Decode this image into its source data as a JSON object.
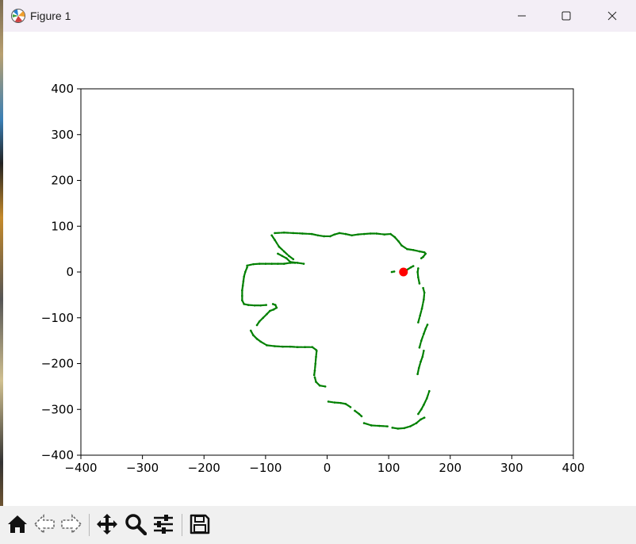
{
  "window": {
    "title": "Figure 1",
    "controls": [
      "minimize-icon",
      "maximize-icon",
      "close-icon"
    ]
  },
  "toolbar": {
    "buttons": [
      "home-icon",
      "back-icon",
      "forward-icon",
      "pan-icon",
      "zoom-icon",
      "configure-subplots-icon",
      "save-icon"
    ]
  },
  "colors": {
    "trajectory": "#008000",
    "current_position": "#ff0000",
    "axes": "#000000"
  },
  "chart_data": {
    "type": "scatter",
    "xlim": [
      -400,
      400
    ],
    "ylim": [
      -400,
      400
    ],
    "xticks": [
      -400,
      -300,
      -200,
      -100,
      0,
      100,
      200,
      300,
      400
    ],
    "yticks": [
      -400,
      -300,
      -200,
      -100,
      0,
      100,
      200,
      300,
      400
    ],
    "xtick_labels": [
      "−400",
      "−300",
      "−200",
      "−100",
      "0",
      "100",
      "200",
      "300",
      "400"
    ],
    "ytick_labels": [
      "−400",
      "−300",
      "−200",
      "−100",
      "0",
      "100",
      "200",
      "300",
      "400"
    ],
    "grid": false,
    "title": "",
    "xlabel": "",
    "ylabel": "",
    "series": [
      {
        "color": "#008000",
        "marker_size": "small",
        "segments": [
          [
            [
              -85,
              85
            ],
            [
              -70,
              86
            ],
            [
              -55,
              85
            ],
            [
              -40,
              84
            ],
            [
              -25,
              83
            ],
            [
              -15,
              80
            ],
            [
              -5,
              78
            ],
            [
              5,
              78
            ],
            [
              12,
              82
            ],
            [
              20,
              85
            ],
            [
              30,
              83
            ],
            [
              40,
              80
            ],
            [
              50,
              82
            ],
            [
              60,
              83
            ],
            [
              70,
              84
            ],
            [
              80,
              84
            ],
            [
              93,
              82
            ],
            [
              103,
              83
            ],
            [
              110,
              76
            ],
            [
              116,
              67
            ],
            [
              121,
              58
            ],
            [
              130,
              50
            ],
            [
              140,
              48
            ],
            [
              150,
              45
            ],
            [
              158,
              43
            ],
            [
              160,
              40
            ],
            [
              156,
              33
            ],
            [
              153,
              30
            ]
          ],
          [
            [
              -90,
              80
            ],
            [
              -85,
              70
            ],
            [
              -78,
              55
            ],
            [
              -70,
              45
            ],
            [
              -62,
              35
            ],
            [
              -55,
              28
            ]
          ],
          [
            [
              -80,
              40
            ],
            [
              -73,
              35
            ],
            [
              -66,
              30
            ],
            [
              -60,
              22
            ],
            [
              -48,
              20
            ],
            [
              -38,
              18
            ]
          ],
          [
            [
              -130,
              14
            ],
            [
              -120,
              17
            ],
            [
              -110,
              18
            ],
            [
              -100,
              18
            ],
            [
              -90,
              18
            ],
            [
              -80,
              18
            ],
            [
              -70,
              18
            ],
            [
              -60,
              20
            ],
            [
              -52,
              20
            ]
          ],
          [
            [
              -130,
              10
            ],
            [
              -133,
              0
            ],
            [
              -135,
              -10
            ],
            [
              -136,
              -20
            ],
            [
              -137,
              -30
            ],
            [
              -138,
              -40
            ],
            [
              -138,
              -52
            ],
            [
              -138,
              -62
            ],
            [
              -135,
              -70
            ],
            [
              -128,
              -72
            ],
            [
              -118,
              -73
            ],
            [
              -108,
              -73
            ],
            [
              -99,
              -72
            ]
          ],
          [
            [
              -88,
              -70
            ],
            [
              -84,
              -72
            ],
            [
              -82,
              -78
            ],
            [
              -87,
              -82
            ],
            [
              -93,
              -85
            ],
            [
              -98,
              -92
            ],
            [
              -104,
              -100
            ],
            [
              -110,
              -108
            ],
            [
              -114,
              -116
            ]
          ],
          [
            [
              -124,
              -128
            ],
            [
              -120,
              -138
            ],
            [
              -114,
              -146
            ],
            [
              -108,
              -152
            ],
            [
              -98,
              -160
            ],
            [
              -85,
              -162
            ],
            [
              -72,
              -163
            ],
            [
              -60,
              -163
            ],
            [
              -48,
              -164
            ],
            [
              -36,
              -164
            ],
            [
              -24,
              -164
            ],
            [
              -18,
              -170
            ]
          ],
          [
            [
              -17,
              -172
            ],
            [
              -18,
              -185
            ],
            [
              -19,
              -200
            ],
            [
              -20,
              -215
            ],
            [
              -21,
              -225
            ]
          ],
          [
            [
              -20,
              -230
            ],
            [
              -18,
              -240
            ],
            [
              -12,
              -248
            ],
            [
              -3,
              -250
            ]
          ],
          [
            [
              2,
              -283
            ],
            [
              12,
              -285
            ],
            [
              22,
              -286
            ],
            [
              30,
              -288
            ],
            [
              38,
              -295
            ]
          ],
          [
            [
              45,
              -303
            ],
            [
              52,
              -310
            ],
            [
              56,
              -315
            ]
          ],
          [
            [
              60,
              -330
            ],
            [
              72,
              -335
            ],
            [
              85,
              -336
            ],
            [
              98,
              -337
            ]
          ],
          [
            [
              106,
              -340
            ],
            [
              115,
              -342
            ],
            [
              125,
              -341
            ],
            [
              135,
              -337
            ],
            [
              145,
              -330
            ],
            [
              152,
              -322
            ],
            [
              158,
              -318
            ]
          ],
          [
            [
              148,
              -310
            ],
            [
              153,
              -300
            ],
            [
              157,
              -290
            ],
            [
              162,
              -276
            ],
            [
              166,
              -260
            ]
          ],
          [
            [
              147,
              -223
            ],
            [
              149,
              -210
            ],
            [
              152,
              -196
            ],
            [
              155,
              -185
            ],
            [
              157,
              -172
            ]
          ],
          [
            [
              150,
              -165
            ],
            [
              153,
              -150
            ],
            [
              157,
              -135
            ],
            [
              160,
              -124
            ],
            [
              163,
              -115
            ]
          ],
          [
            [
              148,
              -110
            ],
            [
              151,
              -95
            ],
            [
              154,
              -80
            ],
            [
              157,
              -60
            ],
            [
              158,
              -45
            ],
            [
              156,
              -35
            ]
          ],
          [
            [
              150,
              -25
            ],
            [
              148,
              -12
            ],
            [
              147,
              0
            ],
            [
              148,
              8
            ]
          ],
          [
            [
              130,
              5
            ],
            [
              136,
              10
            ],
            [
              140,
              13
            ]
          ],
          [
            [
              105,
              0
            ],
            [
              109,
              1
            ]
          ]
        ]
      },
      {
        "color": "#ff0000",
        "marker_size": "large",
        "points": [
          [
            124,
            0
          ]
        ]
      }
    ]
  }
}
